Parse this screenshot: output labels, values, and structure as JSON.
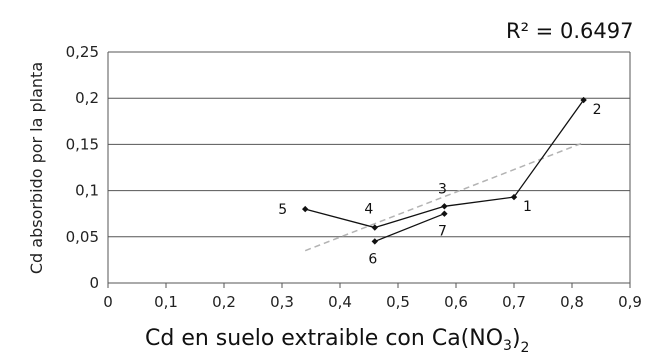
{
  "chart_data": {
    "type": "scatter",
    "r2_label": "R² = 0.6497",
    "xlabel": {
      "main": "Cd en suelo extraible con Ca(NO",
      "sub1": "3",
      "close": ")",
      "sub2": "2"
    },
    "ylabel": "Cd absorbido por la planta",
    "xlim": [
      0,
      0.9
    ],
    "ylim": [
      0,
      0.25
    ],
    "x_ticks": [
      "0",
      "0,1",
      "0,2",
      "0,3",
      "0,4",
      "0,5",
      "0,6",
      "0,7",
      "0,8",
      "0,9"
    ],
    "y_ticks": [
      "0",
      "0,05",
      "0,1",
      "0,15",
      "0,2",
      "0,25"
    ],
    "grid": "horizontal",
    "points": [
      {
        "label": "5",
        "x": 0.34,
        "y": 0.08
      },
      {
        "label": "4",
        "x": 0.46,
        "y": 0.06
      },
      {
        "label": "6",
        "x": 0.46,
        "y": 0.045
      },
      {
        "label": "3",
        "x": 0.58,
        "y": 0.083
      },
      {
        "label": "7",
        "x": 0.58,
        "y": 0.075
      },
      {
        "label": "1",
        "x": 0.7,
        "y": 0.093
      },
      {
        "label": "2",
        "x": 0.82,
        "y": 0.198
      }
    ],
    "connected_lines": [
      [
        "5",
        "4",
        "3",
        "1",
        "2"
      ],
      [
        "6",
        "7"
      ]
    ],
    "trendline": {
      "x_start": 0.34,
      "y_start": 0.035,
      "x_end": 0.82,
      "y_end": 0.152,
      "style": "dashed",
      "color": "#b3b3b3"
    },
    "colors": {
      "series": "#111111",
      "grid": "#555555",
      "trend": "#b3b3b3"
    }
  }
}
